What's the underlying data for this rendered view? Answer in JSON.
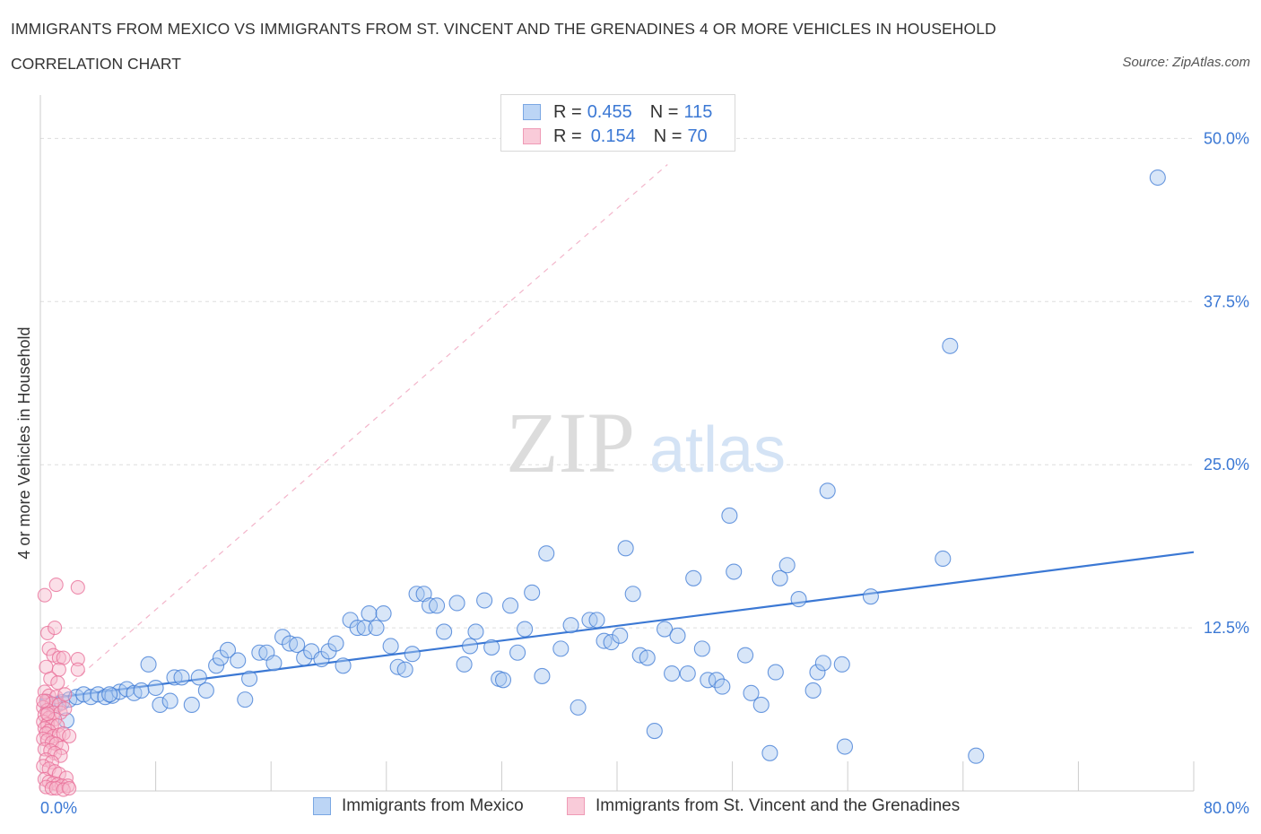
{
  "header": {
    "title": "IMMIGRANTS FROM MEXICO VS IMMIGRANTS FROM ST. VINCENT AND THE GRENADINES 4 OR MORE VEHICLES IN HOUSEHOLD",
    "subtitle": "CORRELATION CHART",
    "source": "Source: ZipAtlas.com"
  },
  "colors": {
    "blue": "#3b78d4",
    "blue_fill": "#a9c8f0",
    "pink": "#e86b95",
    "pink_fill": "#f6b8cb",
    "grid": "#dddddd",
    "axis_label": "#3b78d4"
  },
  "legend_top": {
    "rows": [
      {
        "r_label": "R = ",
        "r_value": "0.455",
        "n_label": "N = ",
        "n_value": "115"
      },
      {
        "r_label": "R = ",
        "r_value": "0.154",
        "n_label": "N = ",
        "n_value": "70"
      }
    ]
  },
  "bottom_legend": {
    "items": [
      "Immigrants from Mexico",
      "Immigrants from St. Vincent and the Grenadines"
    ]
  },
  "watermark": {
    "zip": "ZIP",
    "atlas": "atlas"
  },
  "chart_data": {
    "type": "scatter",
    "title": "IMMIGRANTS FROM MEXICO VS IMMIGRANTS FROM ST. VINCENT AND THE GRENADINES 4 OR MORE VEHICLES IN HOUSEHOLD",
    "xlabel": "",
    "ylabel": "4 or more Vehicles in Household",
    "xlim": [
      0,
      80
    ],
    "ylim": [
      0,
      50
    ],
    "x_tick_labels": [
      "0.0%",
      "80.0%"
    ],
    "y_ticks": [
      12.5,
      25.0,
      37.5,
      50.0
    ],
    "y_tick_labels": [
      "12.5%",
      "25.0%",
      "37.5%",
      "50.0%"
    ],
    "grid": true,
    "legend_position": "top-center",
    "series": [
      {
        "name": "Immigrants from Mexico",
        "color": "#3b78d4",
        "trend": {
          "x": [
            0,
            80
          ],
          "y": [
            7.0,
            18.3
          ]
        },
        "points": [
          [
            0.5,
            6.8
          ],
          [
            1.0,
            6.5
          ],
          [
            1.5,
            6.8
          ],
          [
            2.0,
            7.0
          ],
          [
            2.5,
            7.2
          ],
          [
            3.0,
            7.4
          ],
          [
            3.5,
            7.2
          ],
          [
            4.0,
            7.4
          ],
          [
            4.5,
            7.2
          ],
          [
            5.0,
            7.3
          ],
          [
            5.5,
            7.6
          ],
          [
            6.0,
            7.8
          ],
          [
            6.5,
            7.5
          ],
          [
            7.0,
            7.7
          ],
          [
            7.5,
            9.7
          ],
          [
            8.0,
            7.9
          ],
          [
            8.3,
            6.6
          ],
          [
            9.0,
            6.9
          ],
          [
            9.3,
            8.7
          ],
          [
            9.8,
            8.7
          ],
          [
            10.5,
            6.6
          ],
          [
            11.0,
            8.7
          ],
          [
            11.5,
            7.7
          ],
          [
            12.2,
            9.6
          ],
          [
            12.5,
            10.2
          ],
          [
            13.0,
            10.8
          ],
          [
            13.7,
            10.0
          ],
          [
            14.2,
            7.0
          ],
          [
            14.5,
            8.6
          ],
          [
            15.2,
            10.6
          ],
          [
            15.7,
            10.6
          ],
          [
            16.2,
            9.8
          ],
          [
            16.8,
            11.8
          ],
          [
            17.3,
            11.3
          ],
          [
            17.8,
            11.2
          ],
          [
            18.3,
            10.2
          ],
          [
            18.8,
            10.7
          ],
          [
            19.5,
            10.1
          ],
          [
            20.0,
            10.7
          ],
          [
            20.5,
            11.3
          ],
          [
            21.0,
            9.6
          ],
          [
            21.5,
            13.1
          ],
          [
            22.0,
            12.5
          ],
          [
            22.5,
            12.5
          ],
          [
            22.8,
            13.6
          ],
          [
            23.3,
            12.5
          ],
          [
            23.8,
            13.6
          ],
          [
            24.3,
            11.1
          ],
          [
            24.8,
            9.5
          ],
          [
            25.3,
            9.3
          ],
          [
            25.8,
            10.5
          ],
          [
            26.1,
            15.1
          ],
          [
            26.6,
            15.1
          ],
          [
            27.0,
            14.2
          ],
          [
            27.5,
            14.2
          ],
          [
            28.0,
            12.2
          ],
          [
            28.9,
            14.4
          ],
          [
            29.4,
            9.7
          ],
          [
            29.8,
            11.1
          ],
          [
            30.2,
            12.2
          ],
          [
            30.8,
            14.6
          ],
          [
            31.3,
            11.0
          ],
          [
            31.8,
            8.6
          ],
          [
            32.1,
            8.5
          ],
          [
            32.6,
            14.2
          ],
          [
            33.1,
            10.6
          ],
          [
            33.6,
            12.4
          ],
          [
            34.1,
            15.2
          ],
          [
            34.8,
            8.8
          ],
          [
            35.1,
            18.2
          ],
          [
            36.1,
            10.9
          ],
          [
            36.8,
            12.7
          ],
          [
            37.3,
            6.4
          ],
          [
            38.1,
            13.1
          ],
          [
            38.6,
            13.1
          ],
          [
            39.1,
            11.5
          ],
          [
            39.6,
            11.4
          ],
          [
            40.2,
            11.9
          ],
          [
            40.6,
            18.6
          ],
          [
            41.1,
            15.1
          ],
          [
            41.6,
            10.4
          ],
          [
            42.1,
            10.2
          ],
          [
            42.6,
            4.6
          ],
          [
            43.3,
            12.4
          ],
          [
            43.8,
            9.0
          ],
          [
            44.2,
            11.9
          ],
          [
            44.9,
            9.0
          ],
          [
            45.3,
            16.3
          ],
          [
            45.9,
            10.9
          ],
          [
            46.3,
            8.5
          ],
          [
            46.9,
            8.5
          ],
          [
            47.3,
            8.0
          ],
          [
            47.8,
            21.1
          ],
          [
            48.1,
            16.8
          ],
          [
            48.9,
            10.4
          ],
          [
            49.3,
            7.5
          ],
          [
            50.0,
            6.6
          ],
          [
            50.6,
            2.9
          ],
          [
            51.0,
            9.1
          ],
          [
            51.3,
            16.3
          ],
          [
            51.8,
            17.3
          ],
          [
            52.6,
            14.7
          ],
          [
            53.6,
            7.7
          ],
          [
            53.9,
            9.1
          ],
          [
            54.3,
            9.8
          ],
          [
            54.6,
            23.0
          ],
          [
            55.6,
            9.7
          ],
          [
            55.8,
            3.4
          ],
          [
            57.6,
            14.9
          ],
          [
            62.6,
            17.8
          ],
          [
            64.9,
            2.7
          ],
          [
            63.1,
            34.1
          ],
          [
            77.5,
            47.0
          ],
          [
            1.8,
            5.4
          ],
          [
            4.8,
            7.4
          ]
        ]
      },
      {
        "name": "Immigrants from St. Vincent and the Grenadines",
        "color": "#e86b95",
        "trend": {
          "x": [
            0,
            43.5
          ],
          "y": [
            6.2,
            48.0
          ]
        },
        "points": [
          [
            0.3,
            15.0
          ],
          [
            1.1,
            15.8
          ],
          [
            2.6,
            15.6
          ],
          [
            0.5,
            12.1
          ],
          [
            1.0,
            12.5
          ],
          [
            0.6,
            10.9
          ],
          [
            0.9,
            10.4
          ],
          [
            1.3,
            10.2
          ],
          [
            1.6,
            10.2
          ],
          [
            2.6,
            10.1
          ],
          [
            0.4,
            9.5
          ],
          [
            1.3,
            9.3
          ],
          [
            2.6,
            9.3
          ],
          [
            0.7,
            8.6
          ],
          [
            1.2,
            8.3
          ],
          [
            0.3,
            7.6
          ],
          [
            0.6,
            7.3
          ],
          [
            1.1,
            7.2
          ],
          [
            0.4,
            6.9
          ],
          [
            0.8,
            6.7
          ],
          [
            1.3,
            6.6
          ],
          [
            0.2,
            6.4
          ],
          [
            0.5,
            6.2
          ],
          [
            0.9,
            6.0
          ],
          [
            1.4,
            6.0
          ],
          [
            0.3,
            5.8
          ],
          [
            0.6,
            5.6
          ],
          [
            1.0,
            5.5
          ],
          [
            0.2,
            5.3
          ],
          [
            0.5,
            5.1
          ],
          [
            0.8,
            5.0
          ],
          [
            1.2,
            5.0
          ],
          [
            0.3,
            4.8
          ],
          [
            0.6,
            4.6
          ],
          [
            0.4,
            4.4
          ],
          [
            0.9,
            4.2
          ],
          [
            1.3,
            4.3
          ],
          [
            1.6,
            4.4
          ],
          [
            0.2,
            4.0
          ],
          [
            0.5,
            3.9
          ],
          [
            0.8,
            3.7
          ],
          [
            1.1,
            3.6
          ],
          [
            1.5,
            3.3
          ],
          [
            0.3,
            3.2
          ],
          [
            0.7,
            3.1
          ],
          [
            1.0,
            2.9
          ],
          [
            1.4,
            2.7
          ],
          [
            0.4,
            2.4
          ],
          [
            0.8,
            2.2
          ],
          [
            0.2,
            1.9
          ],
          [
            0.6,
            1.7
          ],
          [
            1.0,
            1.5
          ],
          [
            1.3,
            1.3
          ],
          [
            1.8,
            1.0
          ],
          [
            0.3,
            0.9
          ],
          [
            0.6,
            0.7
          ],
          [
            0.9,
            0.6
          ],
          [
            1.2,
            0.5
          ],
          [
            1.5,
            0.4
          ],
          [
            1.9,
            0.4
          ],
          [
            0.4,
            0.3
          ],
          [
            0.8,
            0.2
          ],
          [
            1.1,
            0.2
          ],
          [
            1.6,
            0.1
          ],
          [
            2.0,
            0.2
          ],
          [
            0.2,
            6.9
          ],
          [
            1.7,
            7.4
          ],
          [
            2.0,
            4.2
          ],
          [
            1.7,
            6.3
          ],
          [
            0.5,
            5.9
          ]
        ]
      }
    ]
  }
}
